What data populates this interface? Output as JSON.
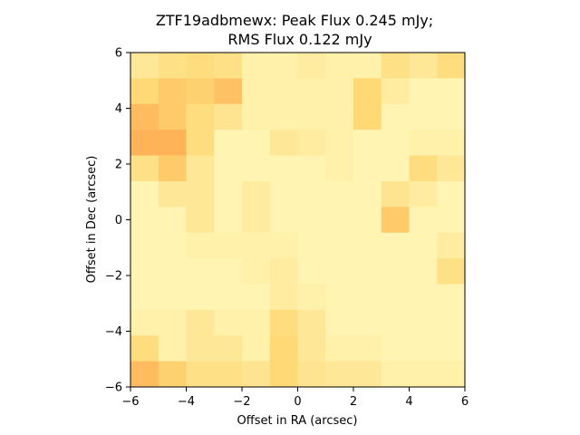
{
  "chart_data": {
    "type": "heatmap",
    "title_lines": [
      "ZTF19adbmewx: Peak Flux 0.245 mJy;",
      "RMS Flux 0.122 mJy"
    ],
    "xlabel": "Offset in RA (arcsec)",
    "ylabel": "Offset in Dec (arcsec)",
    "xlim": [
      -6,
      6
    ],
    "ylim": [
      -6,
      6
    ],
    "xticks": [
      -6,
      -4,
      -2,
      0,
      2,
      4,
      6
    ],
    "yticks": [
      -6,
      -4,
      -2,
      0,
      2,
      4,
      6
    ],
    "xtick_labels": [
      "−6",
      "−4",
      "−2",
      "0",
      "2",
      "4",
      "6"
    ],
    "ytick_labels": [
      "−6",
      "−4",
      "−2",
      "0",
      "2",
      "4",
      "6"
    ],
    "cell_size": 1,
    "colormap": "YlOrRd",
    "grid": false,
    "values_rows_top_to_bottom": [
      [
        0.3,
        0.4,
        0.45,
        0.4,
        0.2,
        0.2,
        0.25,
        0.2,
        0.2,
        0.4,
        0.3,
        0.45
      ],
      [
        0.5,
        0.6,
        0.55,
        0.65,
        0.2,
        0.2,
        0.2,
        0.2,
        0.5,
        0.25,
        0.15,
        0.15
      ],
      [
        0.7,
        0.6,
        0.45,
        0.35,
        0.2,
        0.2,
        0.2,
        0.2,
        0.5,
        0.15,
        0.15,
        0.15
      ],
      [
        0.75,
        0.75,
        0.45,
        0.15,
        0.15,
        0.3,
        0.25,
        0.2,
        0.15,
        0.15,
        0.2,
        0.2
      ],
      [
        0.4,
        0.6,
        0.3,
        0.15,
        0.15,
        0.15,
        0.15,
        0.2,
        0.15,
        0.15,
        0.45,
        0.3
      ],
      [
        0.15,
        0.3,
        0.3,
        0.15,
        0.25,
        0.15,
        0.15,
        0.15,
        0.15,
        0.35,
        0.25,
        0.15
      ],
      [
        0.15,
        0.15,
        0.3,
        0.15,
        0.25,
        0.15,
        0.15,
        0.15,
        0.15,
        0.6,
        0.15,
        0.15
      ],
      [
        0.15,
        0.15,
        0.2,
        0.2,
        0.2,
        0.2,
        0.15,
        0.15,
        0.15,
        0.15,
        0.15,
        0.25
      ],
      [
        0.15,
        0.15,
        0.15,
        0.15,
        0.2,
        0.25,
        0.15,
        0.15,
        0.15,
        0.15,
        0.15,
        0.4
      ],
      [
        0.15,
        0.15,
        0.15,
        0.15,
        0.15,
        0.25,
        0.2,
        0.15,
        0.15,
        0.15,
        0.15,
        0.15
      ],
      [
        0.2,
        0.2,
        0.3,
        0.2,
        0.2,
        0.45,
        0.3,
        0.15,
        0.15,
        0.15,
        0.15,
        0.15
      ],
      [
        0.45,
        0.2,
        0.3,
        0.3,
        0.2,
        0.5,
        0.3,
        0.2,
        0.2,
        0.15,
        0.15,
        0.15
      ]
    ],
    "bottom_row_continued": [
      0.7,
      0.55,
      0.4,
      0.4,
      0.35,
      0.5,
      0.35,
      0.3,
      0.3,
      0.2,
      0.2,
      0.2
    ]
  }
}
